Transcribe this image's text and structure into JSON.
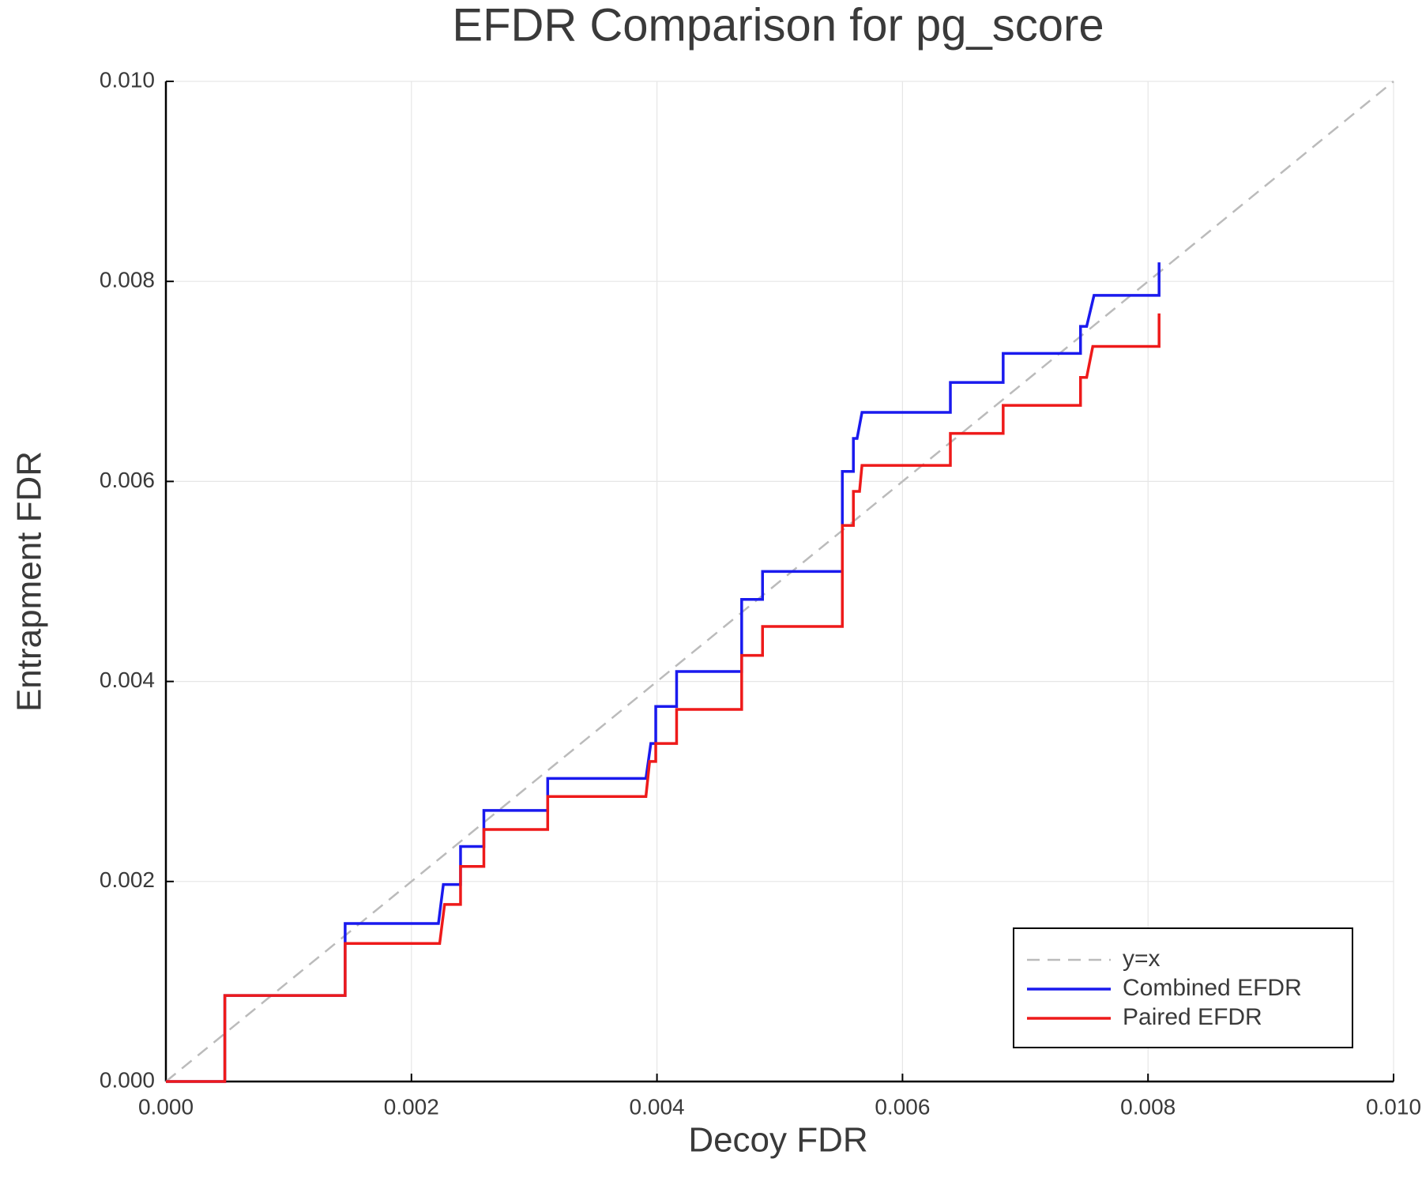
{
  "chart_data": {
    "type": "line",
    "title": "EFDR Comparison for pg_score",
    "x_label": "Decoy FDR",
    "y_label": "Entrapment FDR",
    "xlim": [
      0,
      0.01
    ],
    "ylim": [
      0,
      0.01
    ],
    "xticks": [
      {
        "value": 0,
        "label": "0.000"
      },
      {
        "value": 0.002,
        "label": "0.002"
      },
      {
        "value": 0.004,
        "label": "0.004"
      },
      {
        "value": 0.006,
        "label": "0.006"
      },
      {
        "value": 0.008,
        "label": "0.008"
      },
      {
        "value": 0.01,
        "label": "0.010"
      }
    ],
    "yticks": [
      {
        "value": 0,
        "label": "0.000"
      },
      {
        "value": 0.002,
        "label": "0.002"
      },
      {
        "value": 0.004,
        "label": "0.004"
      },
      {
        "value": 0.006,
        "label": "0.006"
      },
      {
        "value": 0.008,
        "label": "0.008"
      },
      {
        "value": 0.01,
        "label": "0.010"
      }
    ],
    "grid": true,
    "legend_position": "lower right",
    "series": [
      {
        "name": "y=x",
        "color": "#bbbbbb",
        "dashed": true,
        "x": [
          0,
          0.01
        ],
        "values": [
          0,
          0.01
        ]
      },
      {
        "name": "Combined EFDR",
        "color": "#1a1aee",
        "dashed": false,
        "x": [
          0,
          0.00048,
          0.00048,
          0.00146,
          0.00146,
          0.00222,
          0.00226,
          0.0024,
          0.0024,
          0.00259,
          0.00259,
          0.00311,
          0.00311,
          0.00391,
          0.00395,
          0.00399,
          0.00399,
          0.00416,
          0.00416,
          0.00469,
          0.00469,
          0.00486,
          0.00486,
          0.00551,
          0.00551,
          0.0056,
          0.0056,
          0.00563,
          0.00567,
          0.00639,
          0.00639,
          0.00682,
          0.00682,
          0.00745,
          0.00745,
          0.0075,
          0.00756,
          0.00809,
          0.00809
        ],
        "values": [
          0,
          0,
          0.00086,
          0.00086,
          0.00158,
          0.00158,
          0.00197,
          0.00197,
          0.00235,
          0.00235,
          0.00271,
          0.00271,
          0.00303,
          0.00303,
          0.00338,
          0.00338,
          0.00375,
          0.00375,
          0.0041,
          0.0041,
          0.00482,
          0.00482,
          0.0051,
          0.0051,
          0.0061,
          0.0061,
          0.00643,
          0.00643,
          0.00669,
          0.00669,
          0.00699,
          0.00699,
          0.00728,
          0.00728,
          0.00755,
          0.00755,
          0.00786,
          0.00786,
          0.00819
        ]
      },
      {
        "name": "Paired EFDR",
        "color": "#ee1a1a",
        "dashed": false,
        "x": [
          0,
          0.00048,
          0.00048,
          0.00146,
          0.00146,
          0.00223,
          0.00227,
          0.0024,
          0.0024,
          0.00259,
          0.00259,
          0.00311,
          0.00311,
          0.00391,
          0.00394,
          0.00399,
          0.00399,
          0.00416,
          0.00416,
          0.00469,
          0.00469,
          0.00486,
          0.00486,
          0.00551,
          0.00551,
          0.0056,
          0.0056,
          0.00565,
          0.00567,
          0.00639,
          0.00639,
          0.00682,
          0.00682,
          0.00745,
          0.00745,
          0.0075,
          0.00755,
          0.00809,
          0.00809
        ],
        "values": [
          0,
          0,
          0.00086,
          0.00086,
          0.00138,
          0.00138,
          0.00177,
          0.00177,
          0.00215,
          0.00215,
          0.00252,
          0.00252,
          0.00285,
          0.00285,
          0.0032,
          0.0032,
          0.00338,
          0.00338,
          0.00372,
          0.00372,
          0.00426,
          0.00426,
          0.00455,
          0.00455,
          0.00556,
          0.00556,
          0.0059,
          0.0059,
          0.00616,
          0.00616,
          0.00648,
          0.00648,
          0.00676,
          0.00676,
          0.00704,
          0.00704,
          0.00735,
          0.00735,
          0.00768
        ]
      }
    ]
  }
}
